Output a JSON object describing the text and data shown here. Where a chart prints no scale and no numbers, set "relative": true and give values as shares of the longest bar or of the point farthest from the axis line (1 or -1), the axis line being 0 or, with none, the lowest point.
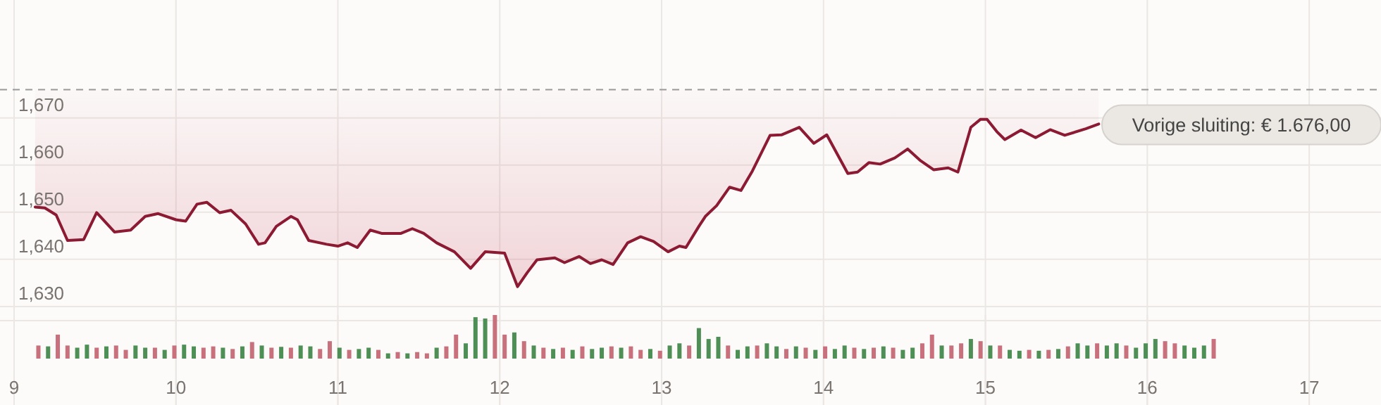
{
  "chart_data": [
    {
      "type": "line",
      "x": [
        9.13,
        9.19,
        9.26,
        9.33,
        9.43,
        9.51,
        9.62,
        9.72,
        9.81,
        9.89,
        10.0,
        10.06,
        10.13,
        10.19,
        10.27,
        10.34,
        10.43,
        10.51,
        10.55,
        10.62,
        10.71,
        10.75,
        10.82,
        10.93,
        11.0,
        11.06,
        11.12,
        11.2,
        11.27,
        11.39,
        11.46,
        11.53,
        11.61,
        11.72,
        11.82,
        11.91,
        12.03,
        12.11,
        12.17,
        12.23,
        12.34,
        12.4,
        12.49,
        12.56,
        12.63,
        12.7,
        12.79,
        12.87,
        12.95,
        13.04,
        13.11,
        13.15,
        13.23,
        13.27,
        13.34,
        13.42,
        13.49,
        13.56,
        13.67,
        13.74,
        13.85,
        13.94,
        14.02,
        14.15,
        14.21,
        14.28,
        14.35,
        14.44,
        14.52,
        14.6,
        14.68,
        14.77,
        14.83,
        14.91,
        14.97,
        15.01,
        15.07,
        15.12,
        15.22,
        15.31,
        15.4,
        15.49,
        15.62,
        15.7
      ],
      "series": [
        {
          "color": "#8b1a32",
          "upper": [
            1676,
            1676,
            1676,
            1676,
            1676,
            1676,
            1676,
            1676,
            1676,
            1676,
            1676,
            1676,
            1676,
            1676,
            1676,
            1676,
            1676,
            1676,
            1676,
            1676,
            1676,
            1676,
            1676,
            1676,
            1676,
            1676,
            1676,
            1676,
            1676,
            1676,
            1676,
            1676,
            1676,
            1676,
            1676,
            1676,
            1676,
            1676,
            1676,
            1676,
            1676,
            1676,
            1676,
            1676,
            1676,
            1676,
            1676,
            1676,
            1676,
            1676,
            1676,
            1676,
            1676,
            1676,
            1676,
            1676,
            1676,
            1676,
            1676,
            1676,
            1676,
            1676,
            1676,
            1676,
            1676,
            1676,
            1676,
            1676,
            1676,
            1676,
            1676,
            1676,
            1676,
            1676,
            1676,
            1676,
            1676,
            1676,
            1676,
            1676,
            1676,
            1676,
            1676,
            1676
          ],
          "lower": [
            1651.1,
            1650.9,
            1649.4,
            1644.0,
            1644.2,
            1649.9,
            1645.8,
            1646.2,
            1649.1,
            1649.7,
            1648.4,
            1648.1,
            1651.7,
            1652.1,
            1649.9,
            1650.4,
            1647.5,
            1643.2,
            1643.5,
            1647.0,
            1649.1,
            1648.4,
            1644.0,
            1643.2,
            1642.8,
            1643.5,
            1642.5,
            1646.2,
            1645.5,
            1645.5,
            1646.5,
            1645.5,
            1643.5,
            1641.6,
            1638.1,
            1641.6,
            1641.3,
            1634.2,
            1637.2,
            1639.9,
            1640.3,
            1639.3,
            1640.6,
            1639.1,
            1639.9,
            1638.9,
            1643.5,
            1644.8,
            1643.8,
            1641.6,
            1642.8,
            1642.5,
            1647.0,
            1649.1,
            1651.4,
            1655.3,
            1654.6,
            1658.7,
            1666.3,
            1666.4,
            1668.0,
            1664.6,
            1666.4,
            1658.2,
            1658.5,
            1660.5,
            1660.2,
            1661.5,
            1663.4,
            1660.9,
            1659.0,
            1659.4,
            1658.5,
            1668.0,
            1669.7,
            1669.7,
            1667.1,
            1665.4,
            1667.4,
            1665.8,
            1667.5,
            1666.3,
            1667.7,
            1668.7
          ],
          "values": [
            1651.1,
            1650.9,
            1649.4,
            1644.0,
            1644.2,
            1649.9,
            1645.8,
            1646.2,
            1649.1,
            1649.7,
            1648.4,
            1648.1,
            1651.7,
            1652.1,
            1649.9,
            1650.4,
            1647.5,
            1643.2,
            1643.5,
            1647.0,
            1649.1,
            1648.4,
            1644.0,
            1643.2,
            1642.8,
            1643.5,
            1642.5,
            1646.2,
            1645.5,
            1645.5,
            1646.5,
            1645.5,
            1643.5,
            1641.6,
            1638.1,
            1641.6,
            1641.3,
            1634.2,
            1637.2,
            1639.9,
            1640.3,
            1639.3,
            1640.6,
            1639.1,
            1639.9,
            1638.9,
            1643.5,
            1644.8,
            1643.8,
            1641.6,
            1642.8,
            1642.5,
            1647.0,
            1649.1,
            1651.4,
            1655.3,
            1654.6,
            1658.7,
            1666.3,
            1666.4,
            1668.0,
            1664.6,
            1666.4,
            1658.2,
            1658.5,
            1660.5,
            1660.2,
            1661.5,
            1663.4,
            1660.9,
            1659.0,
            1659.4,
            1658.5,
            1668.0,
            1669.7,
            1669.7,
            1667.1,
            1665.4,
            1667.4,
            1665.8,
            1667.5,
            1666.3,
            1667.7,
            1668.7
          ]
        }
      ],
      "xlim": [
        9,
        17.4
      ],
      "xticks": [
        9,
        10,
        11,
        12,
        13,
        14,
        15,
        16,
        17
      ],
      "ylim": [
        1627,
        1695
      ],
      "yticks": [
        {
          "value": 1630,
          "label": "1,630"
        },
        {
          "value": 1640,
          "label": "1,640"
        },
        {
          "value": 1650,
          "label": "1,650"
        },
        {
          "value": 1660,
          "label": "1,660"
        },
        {
          "value": 1670,
          "label": "1,670"
        }
      ],
      "ref_lines": [
        {
          "axis": "y",
          "value": 1676,
          "label": "Vorige sluiting: € 1.676,00",
          "color": "#999999",
          "line_style": "dashed"
        }
      ],
      "grid": true,
      "tick_labels": "y"
    },
    {
      "type": "bar",
      "relative": true,
      "x": [
        9.15,
        9.21,
        9.27,
        9.33,
        9.39,
        9.45,
        9.51,
        9.57,
        9.63,
        9.69,
        9.75,
        9.81,
        9.87,
        9.93,
        9.99,
        10.05,
        10.11,
        10.17,
        10.23,
        10.29,
        10.35,
        10.41,
        10.47,
        10.53,
        10.59,
        10.65,
        10.71,
        10.77,
        10.83,
        10.89,
        10.95,
        11.01,
        11.07,
        11.13,
        11.19,
        11.25,
        11.31,
        11.37,
        11.43,
        11.49,
        11.55,
        11.61,
        11.67,
        11.73,
        11.79,
        11.85,
        11.91,
        11.97,
        12.03,
        12.09,
        12.15,
        12.21,
        12.27,
        12.33,
        12.39,
        12.45,
        12.51,
        12.57,
        12.63,
        12.69,
        12.75,
        12.81,
        12.87,
        12.93,
        12.99,
        13.05,
        13.11,
        13.17,
        13.23,
        13.29,
        13.35,
        13.41,
        13.47,
        13.53,
        13.59,
        13.65,
        13.71,
        13.77,
        13.83,
        13.89,
        13.95,
        14.01,
        14.07,
        14.13,
        14.19,
        14.25,
        14.31,
        14.37,
        14.43,
        14.49,
        14.55,
        14.61,
        14.67,
        14.73,
        14.79,
        14.85,
        14.91,
        14.97,
        15.03,
        15.09,
        15.15,
        15.21,
        15.27,
        15.33,
        15.39,
        15.45,
        15.51,
        15.57,
        15.63,
        15.69,
        15.75,
        15.81,
        15.87,
        15.93,
        15.99,
        16.05,
        16.11,
        16.17,
        16.23,
        16.29,
        16.35,
        16.41
      ],
      "values": [
        0.3,
        0.28,
        0.55,
        0.3,
        0.25,
        0.32,
        0.25,
        0.28,
        0.3,
        0.2,
        0.3,
        0.25,
        0.25,
        0.2,
        0.3,
        0.32,
        0.28,
        0.25,
        0.28,
        0.25,
        0.22,
        0.28,
        0.38,
        0.3,
        0.25,
        0.27,
        0.25,
        0.3,
        0.28,
        0.22,
        0.4,
        0.25,
        0.2,
        0.22,
        0.25,
        0.2,
        0.12,
        0.15,
        0.12,
        0.15,
        0.12,
        0.25,
        0.28,
        0.55,
        0.35,
        0.95,
        0.92,
        1,
        0.55,
        0.6,
        0.4,
        0.3,
        0.25,
        0.22,
        0.25,
        0.2,
        0.28,
        0.22,
        0.25,
        0.28,
        0.25,
        0.28,
        0.2,
        0.22,
        0.18,
        0.3,
        0.35,
        0.3,
        0.7,
        0.45,
        0.5,
        0.3,
        0.2,
        0.28,
        0.3,
        0.35,
        0.28,
        0.22,
        0.28,
        0.25,
        0.2,
        0.28,
        0.22,
        0.3,
        0.25,
        0.22,
        0.25,
        0.28,
        0.25,
        0.2,
        0.25,
        0.35,
        0.55,
        0.3,
        0.3,
        0.35,
        0.45,
        0.4,
        0.3,
        0.3,
        0.2,
        0.18,
        0.2,
        0.18,
        0.2,
        0.22,
        0.28,
        0.35,
        0.3,
        0.35,
        0.3,
        0.35,
        0.3,
        0.25,
        0.35,
        0.45,
        0.4,
        0.35,
        0.3,
        0.25,
        0.3,
        0.45
      ],
      "colors": [
        "#c8707c",
        "#4e8f55",
        "#c8707c",
        "#c8707c",
        "#4e8f55",
        "#4e8f55",
        "#c8707c",
        "#4e8f55",
        "#c8707c",
        "#c8707c",
        "#4e8f55",
        "#4e8f55",
        "#c8707c",
        "#4e8f55",
        "#c8707c",
        "#4e8f55",
        "#4e8f55",
        "#c8707c",
        "#c8707c",
        "#4e8f55",
        "#c8707c",
        "#4e8f55",
        "#c8707c",
        "#4e8f55",
        "#c8707c",
        "#4e8f55",
        "#c8707c",
        "#4e8f55",
        "#4e8f55",
        "#c8707c",
        "#c8707c",
        "#4e8f55",
        "#c8707c",
        "#4e8f55",
        "#4e8f55",
        "#c8707c",
        "#4e8f55",
        "#c8707c",
        "#4e8f55",
        "#c8707c",
        "#c8707c",
        "#4e8f55",
        "#c8707c",
        "#c8707c",
        "#4e8f55",
        "#4e8f55",
        "#4e8f55",
        "#c8707c",
        "#c8707c",
        "#4e8f55",
        "#c8707c",
        "#4e8f55",
        "#c8707c",
        "#4e8f55",
        "#c8707c",
        "#4e8f55",
        "#c8707c",
        "#4e8f55",
        "#4e8f55",
        "#c8707c",
        "#4e8f55",
        "#c8707c",
        "#c8707c",
        "#4e8f55",
        "#c8707c",
        "#4e8f55",
        "#4e8f55",
        "#c8707c",
        "#4e8f55",
        "#4e8f55",
        "#4e8f55",
        "#c8707c",
        "#4e8f55",
        "#4e8f55",
        "#c8707c",
        "#4e8f55",
        "#4e8f55",
        "#c8707c",
        "#4e8f55",
        "#c8707c",
        "#4e8f55",
        "#c8707c",
        "#4e8f55",
        "#4e8f55",
        "#c8707c",
        "#4e8f55",
        "#c8707c",
        "#4e8f55",
        "#c8707c",
        "#4e8f55",
        "#4e8f55",
        "#c8707c",
        "#c8707c",
        "#4e8f55",
        "#c8707c",
        "#c8707c",
        "#4e8f55",
        "#c8707c",
        "#4e8f55",
        "#c8707c",
        "#4e8f55",
        "#4e8f55",
        "#c8707c",
        "#4e8f55",
        "#c8707c",
        "#4e8f55",
        "#c8707c",
        "#4e8f55",
        "#4e8f55",
        "#c8707c",
        "#4e8f55",
        "#4e8f55",
        "#c8707c",
        "#4e8f55",
        "#4e8f55",
        "#4e8f55",
        "#c8707c",
        "#c8707c",
        "#4e8f55",
        "#4e8f55",
        "#4e8f55",
        "#c8707c"
      ],
      "xlim": [
        9,
        17.4
      ],
      "xticks": [
        9,
        10,
        11,
        12,
        13,
        14,
        15,
        16,
        17
      ],
      "grid": "x",
      "tick_labels": "x"
    }
  ]
}
